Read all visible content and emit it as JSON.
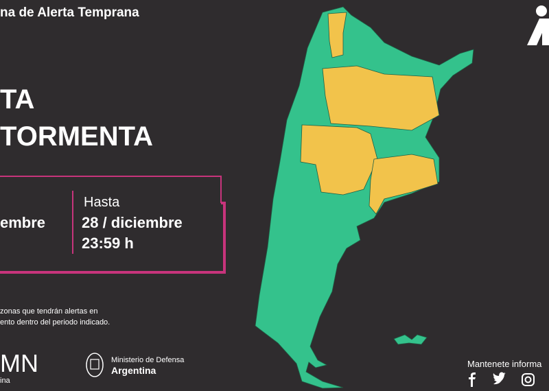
{
  "header": {
    "title": "na de Alerta Temprana"
  },
  "alert": {
    "line1": "TA",
    "line2": "TORMENTA"
  },
  "period": {
    "from": "embre",
    "to_label": "Hasta",
    "to_date": "28 / diciembre",
    "to_time": "23:59 h"
  },
  "note": {
    "line1": "zonas que tendrán alertas en",
    "line2": "ento dentro del periodo indicado."
  },
  "footer": {
    "smn": "MN",
    "smn_sub": "ina",
    "ministry": "Ministerio de Defensa",
    "country": "Argentina",
    "social": "Mantenete informa"
  }
}
